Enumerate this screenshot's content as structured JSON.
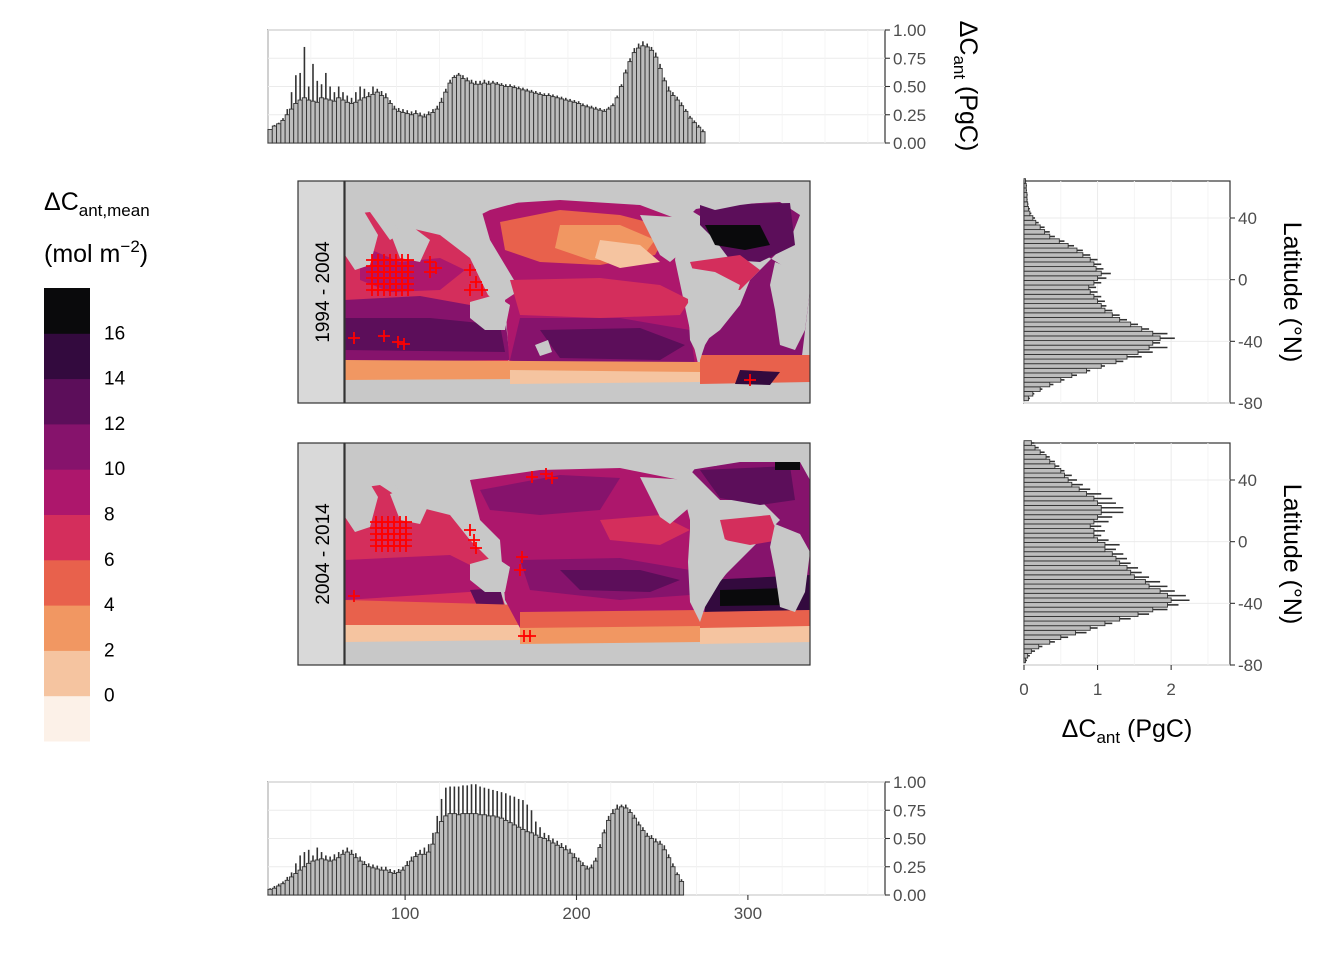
{
  "legend": {
    "title_main": "ΔC",
    "title_sub": "ant,mean",
    "units_pre": "(mol m",
    "units_sup": "−2",
    "units_post": ")",
    "bins": [
      {
        "label": "",
        "color": "#fcf1e8"
      },
      {
        "label": "0",
        "color": "#f5c4a0"
      },
      {
        "label": "2",
        "color": "#f19762"
      },
      {
        "label": "4",
        "color": "#e8614c"
      },
      {
        "label": "6",
        "color": "#d42e5c"
      },
      {
        "label": "8",
        "color": "#ad176c"
      },
      {
        "label": "10",
        "color": "#86136c"
      },
      {
        "label": "12",
        "color": "#5c0e5a"
      },
      {
        "label": "14",
        "color": "#330a3e"
      },
      {
        "label": "16",
        "color": "#0a0a0c"
      }
    ]
  },
  "panels": [
    {
      "strip": "1994 - 2004"
    },
    {
      "strip": "2004 - 2014"
    }
  ],
  "colors": {
    "land": "#c8c8c8",
    "marker": "#ff0000",
    "bar_fill": "#bdbdbd",
    "bar_line": "#333333",
    "strip_bg": "#d9d9d9"
  },
  "chart_data": [
    {
      "type": "bar",
      "panel": "top longitude histogram",
      "ylabel_main": "ΔC",
      "ylabel_sub": "ant",
      "ylabel_units": "(PgC)",
      "xlim": [
        20,
        380
      ],
      "ylim": [
        0,
        1.0
      ],
      "yticks": [
        "0.00",
        "0.25",
        "0.50",
        "0.75",
        "1.00"
      ],
      "x_start": 20,
      "x_step": 2.5,
      "values": [
        0.12,
        0.15,
        0.17,
        0.2,
        0.25,
        0.3,
        0.35,
        0.38,
        0.4,
        0.38,
        0.37,
        0.36,
        0.4,
        0.39,
        0.38,
        0.37,
        0.4,
        0.38,
        0.36,
        0.35,
        0.36,
        0.38,
        0.4,
        0.41,
        0.43,
        0.45,
        0.42,
        0.4,
        0.35,
        0.3,
        0.28,
        0.27,
        0.26,
        0.25,
        0.26,
        0.24,
        0.23,
        0.25,
        0.27,
        0.3,
        0.36,
        0.45,
        0.53,
        0.58,
        0.6,
        0.57,
        0.55,
        0.53,
        0.52,
        0.52,
        0.53,
        0.52,
        0.53,
        0.52,
        0.51,
        0.5,
        0.5,
        0.49,
        0.48,
        0.47,
        0.46,
        0.45,
        0.44,
        0.43,
        0.42,
        0.42,
        0.41,
        0.4,
        0.39,
        0.38,
        0.37,
        0.36,
        0.35,
        0.33,
        0.32,
        0.31,
        0.3,
        0.29,
        0.28,
        0.3,
        0.33,
        0.4,
        0.5,
        0.62,
        0.72,
        0.8,
        0.84,
        0.86,
        0.85,
        0.82,
        0.76,
        0.66,
        0.55,
        0.46,
        0.42,
        0.38,
        0.33,
        0.28,
        0.22,
        0.18,
        0.14,
        0.1
      ],
      "whisker_tops": [
        0.12,
        0.16,
        0.18,
        0.22,
        0.3,
        0.45,
        0.6,
        0.62,
        0.85,
        0.5,
        0.7,
        0.55,
        0.52,
        0.62,
        0.5,
        0.45,
        0.5,
        0.45,
        0.42,
        0.4,
        0.45,
        0.5,
        0.48,
        0.45,
        0.5,
        0.48,
        0.46,
        0.44,
        0.38,
        0.33,
        0.31,
        0.3,
        0.29,
        0.28,
        0.29,
        0.27,
        0.26,
        0.28,
        0.3,
        0.33,
        0.4,
        0.48,
        0.56,
        0.6,
        0.62,
        0.6,
        0.58,
        0.56,
        0.55,
        0.55,
        0.56,
        0.55,
        0.55,
        0.54,
        0.53,
        0.52,
        0.52,
        0.51,
        0.5,
        0.49,
        0.48,
        0.47,
        0.46,
        0.45,
        0.44,
        0.44,
        0.43,
        0.42,
        0.41,
        0.4,
        0.39,
        0.38,
        0.37,
        0.35,
        0.34,
        0.33,
        0.32,
        0.31,
        0.3,
        0.32,
        0.35,
        0.42,
        0.52,
        0.65,
        0.75,
        0.84,
        0.88,
        0.9,
        0.88,
        0.85,
        0.8,
        0.7,
        0.58,
        0.5,
        0.45,
        0.41,
        0.36,
        0.3,
        0.24,
        0.2,
        0.16,
        0.12
      ]
    },
    {
      "type": "bar",
      "panel": "bottom longitude histogram",
      "xlim": [
        20,
        380
      ],
      "ylim": [
        0,
        1.0
      ],
      "yticks": [
        "0.00",
        "0.25",
        "0.50",
        "0.75",
        "1.00"
      ],
      "xticks": [
        "100",
        "200",
        "300"
      ],
      "xtick_values": [
        100,
        200,
        300
      ],
      "x_start": 20,
      "x_step": 2.5,
      "values": [
        0.05,
        0.06,
        0.08,
        0.1,
        0.13,
        0.16,
        0.19,
        0.22,
        0.25,
        0.28,
        0.3,
        0.31,
        0.32,
        0.31,
        0.3,
        0.31,
        0.33,
        0.36,
        0.38,
        0.36,
        0.33,
        0.3,
        0.27,
        0.25,
        0.24,
        0.23,
        0.22,
        0.22,
        0.2,
        0.19,
        0.2,
        0.22,
        0.26,
        0.3,
        0.34,
        0.36,
        0.36,
        0.38,
        0.45,
        0.55,
        0.65,
        0.7,
        0.72,
        0.72,
        0.71,
        0.72,
        0.72,
        0.72,
        0.72,
        0.71,
        0.71,
        0.7,
        0.7,
        0.69,
        0.68,
        0.66,
        0.64,
        0.62,
        0.6,
        0.58,
        0.56,
        0.55,
        0.53,
        0.51,
        0.5,
        0.48,
        0.46,
        0.44,
        0.42,
        0.4,
        0.37,
        0.33,
        0.3,
        0.26,
        0.23,
        0.24,
        0.3,
        0.42,
        0.55,
        0.66,
        0.72,
        0.76,
        0.78,
        0.77,
        0.73,
        0.68,
        0.62,
        0.57,
        0.52,
        0.5,
        0.47,
        0.45,
        0.4,
        0.33,
        0.25,
        0.18,
        0.12
      ],
      "whisker_tops": [
        0.06,
        0.08,
        0.1,
        0.12,
        0.16,
        0.2,
        0.28,
        0.35,
        0.38,
        0.4,
        0.35,
        0.42,
        0.38,
        0.35,
        0.34,
        0.36,
        0.38,
        0.4,
        0.42,
        0.4,
        0.37,
        0.34,
        0.3,
        0.28,
        0.27,
        0.26,
        0.25,
        0.25,
        0.23,
        0.22,
        0.23,
        0.25,
        0.3,
        0.34,
        0.38,
        0.4,
        0.42,
        0.45,
        0.55,
        0.7,
        0.85,
        0.95,
        0.96,
        0.96,
        0.96,
        0.97,
        0.97,
        0.98,
        0.98,
        0.96,
        0.95,
        0.94,
        0.93,
        0.92,
        0.91,
        0.9,
        0.88,
        0.87,
        0.85,
        0.84,
        0.8,
        0.75,
        0.65,
        0.6,
        0.55,
        0.53,
        0.5,
        0.48,
        0.46,
        0.44,
        0.41,
        0.37,
        0.33,
        0.29,
        0.26,
        0.27,
        0.33,
        0.45,
        0.58,
        0.7,
        0.76,
        0.8,
        0.8,
        0.8,
        0.76,
        0.71,
        0.65,
        0.6,
        0.55,
        0.53,
        0.5,
        0.48,
        0.44,
        0.36,
        0.28,
        0.2,
        0.14
      ]
    },
    {
      "type": "bar",
      "panel": "right latitude histogram 1994 - 2004",
      "orientation": "horizontal",
      "ylabel": "Latitude (°N)",
      "ylim": [
        -80,
        64
      ],
      "yticks": [
        "-80",
        "-40",
        "0",
        "40"
      ],
      "ytick_values": [
        -80,
        -40,
        0,
        40
      ],
      "xlim": [
        0,
        2.8
      ],
      "y_start": -77,
      "y_step": 3,
      "values": [
        0.06,
        0.12,
        0.22,
        0.35,
        0.5,
        0.65,
        0.85,
        1.05,
        1.25,
        1.4,
        1.55,
        1.7,
        1.75,
        1.85,
        1.75,
        1.6,
        1.45,
        1.3,
        1.2,
        1.1,
        1.05,
        1.0,
        0.95,
        0.9,
        0.88,
        0.95,
        1.0,
        1.05,
        0.98,
        0.95,
        0.9,
        0.8,
        0.72,
        0.6,
        0.48,
        0.35,
        0.28,
        0.22,
        0.16,
        0.12,
        0.08,
        0.06,
        0.05,
        0.04,
        0.04,
        0.03,
        0.03,
        0.02
      ],
      "whisker_tops": [
        0.08,
        0.14,
        0.25,
        0.4,
        0.55,
        0.72,
        0.9,
        1.1,
        1.35,
        1.6,
        1.75,
        1.95,
        1.85,
        2.05,
        1.95,
        1.7,
        1.55,
        1.4,
        1.3,
        1.2,
        1.12,
        1.1,
        1.05,
        1.0,
        0.98,
        1.05,
        1.12,
        1.18,
        1.08,
        1.05,
        1.0,
        0.9,
        0.8,
        0.68,
        0.55,
        0.42,
        0.35,
        0.28,
        0.2,
        0.15,
        0.1,
        0.08,
        0.06,
        0.05,
        0.05,
        0.04,
        0.04,
        0.03
      ]
    },
    {
      "type": "bar",
      "panel": "right latitude histogram 2004 - 2014",
      "orientation": "horizontal",
      "xlabel_main": "ΔC",
      "xlabel_sub": "ant",
      "xlabel_units": "(PgC)",
      "ylabel": "Latitude (°N)",
      "ylim": [
        -80,
        64
      ],
      "yticks": [
        "-80",
        "-40",
        "0",
        "40"
      ],
      "ytick_values": [
        -80,
        -40,
        0,
        40
      ],
      "xlim": [
        0,
        2.8
      ],
      "xticks": [
        "0",
        "1",
        "2"
      ],
      "xtick_values": [
        0,
        1,
        2
      ],
      "y_start": -77,
      "y_step": 3,
      "values": [
        0.02,
        0.05,
        0.1,
        0.2,
        0.35,
        0.5,
        0.7,
        0.9,
        1.1,
        1.3,
        1.55,
        1.75,
        1.95,
        2.0,
        1.95,
        1.85,
        1.7,
        1.65,
        1.5,
        1.45,
        1.4,
        1.3,
        1.25,
        1.2,
        1.1,
        1.1,
        1.0,
        0.95,
        0.95,
        0.9,
        0.95,
        1.0,
        1.05,
        1.05,
        1.0,
        0.95,
        0.85,
        0.75,
        0.65,
        0.6,
        0.55,
        0.5,
        0.42,
        0.35,
        0.3,
        0.22,
        0.15,
        0.1
      ],
      "whisker_tops": [
        0.04,
        0.08,
        0.15,
        0.25,
        0.42,
        0.6,
        0.85,
        1.0,
        1.2,
        1.45,
        1.7,
        1.95,
        2.1,
        2.25,
        2.2,
        2.05,
        1.95,
        1.85,
        1.7,
        1.6,
        1.55,
        1.45,
        1.4,
        1.35,
        1.25,
        1.3,
        1.15,
        1.05,
        1.1,
        1.05,
        1.15,
        1.2,
        1.35,
        1.35,
        1.25,
        1.2,
        1.05,
        0.9,
        0.8,
        0.72,
        0.65,
        0.55,
        0.48,
        0.42,
        0.35,
        0.28,
        0.2,
        0.14
      ]
    }
  ]
}
